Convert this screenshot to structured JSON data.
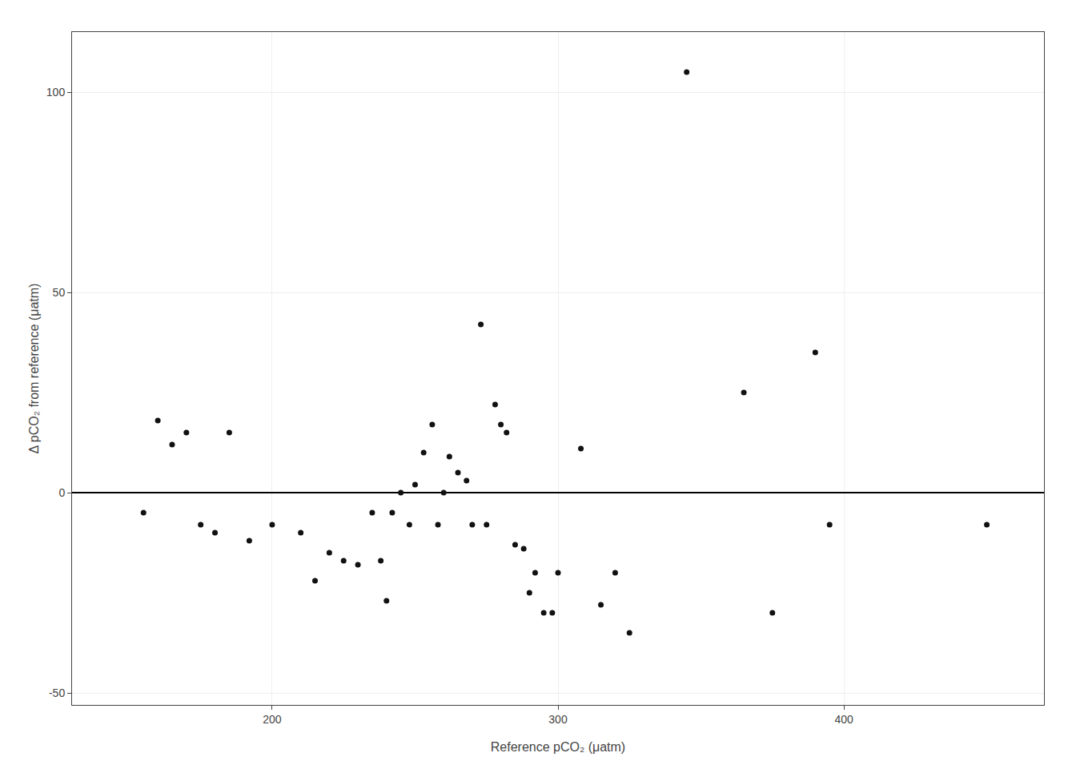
{
  "chart_data": {
    "type": "scatter",
    "x": [
      155,
      160,
      165,
      170,
      175,
      180,
      185,
      192,
      200,
      210,
      215,
      220,
      225,
      230,
      235,
      238,
      240,
      242,
      245,
      248,
      250,
      253,
      256,
      258,
      260,
      262,
      265,
      268,
      270,
      273,
      275,
      278,
      280,
      282,
      285,
      288,
      290,
      292,
      295,
      298,
      300,
      308,
      315,
      320,
      325,
      345,
      365,
      375,
      390,
      395,
      450
    ],
    "values": [
      -5,
      18,
      12,
      15,
      -8,
      -10,
      15,
      -12,
      -8,
      -10,
      -22,
      -15,
      -17,
      -18,
      -5,
      -17,
      -27,
      -5,
      0,
      -8,
      2,
      10,
      17,
      -8,
      0,
      9,
      5,
      3,
      -8,
      42,
      -8,
      22,
      17,
      15,
      -13,
      -14,
      -25,
      -20,
      -30,
      -30,
      -20,
      11,
      -28,
      -20,
      -35,
      105,
      25,
      -30,
      35,
      -8,
      -8
    ],
    "xlim": [
      130,
      470
    ],
    "ylim": [
      -53,
      115
    ],
    "xticks": [
      200,
      300,
      400
    ],
    "yticks": [
      -50,
      0,
      50,
      100
    ],
    "xlabel": "Reference pCO₂ (μatm)",
    "ylabel": "Δ pCO₂ from reference (μatm)",
    "color": "#111111",
    "marker": "circle",
    "grid": true
  }
}
